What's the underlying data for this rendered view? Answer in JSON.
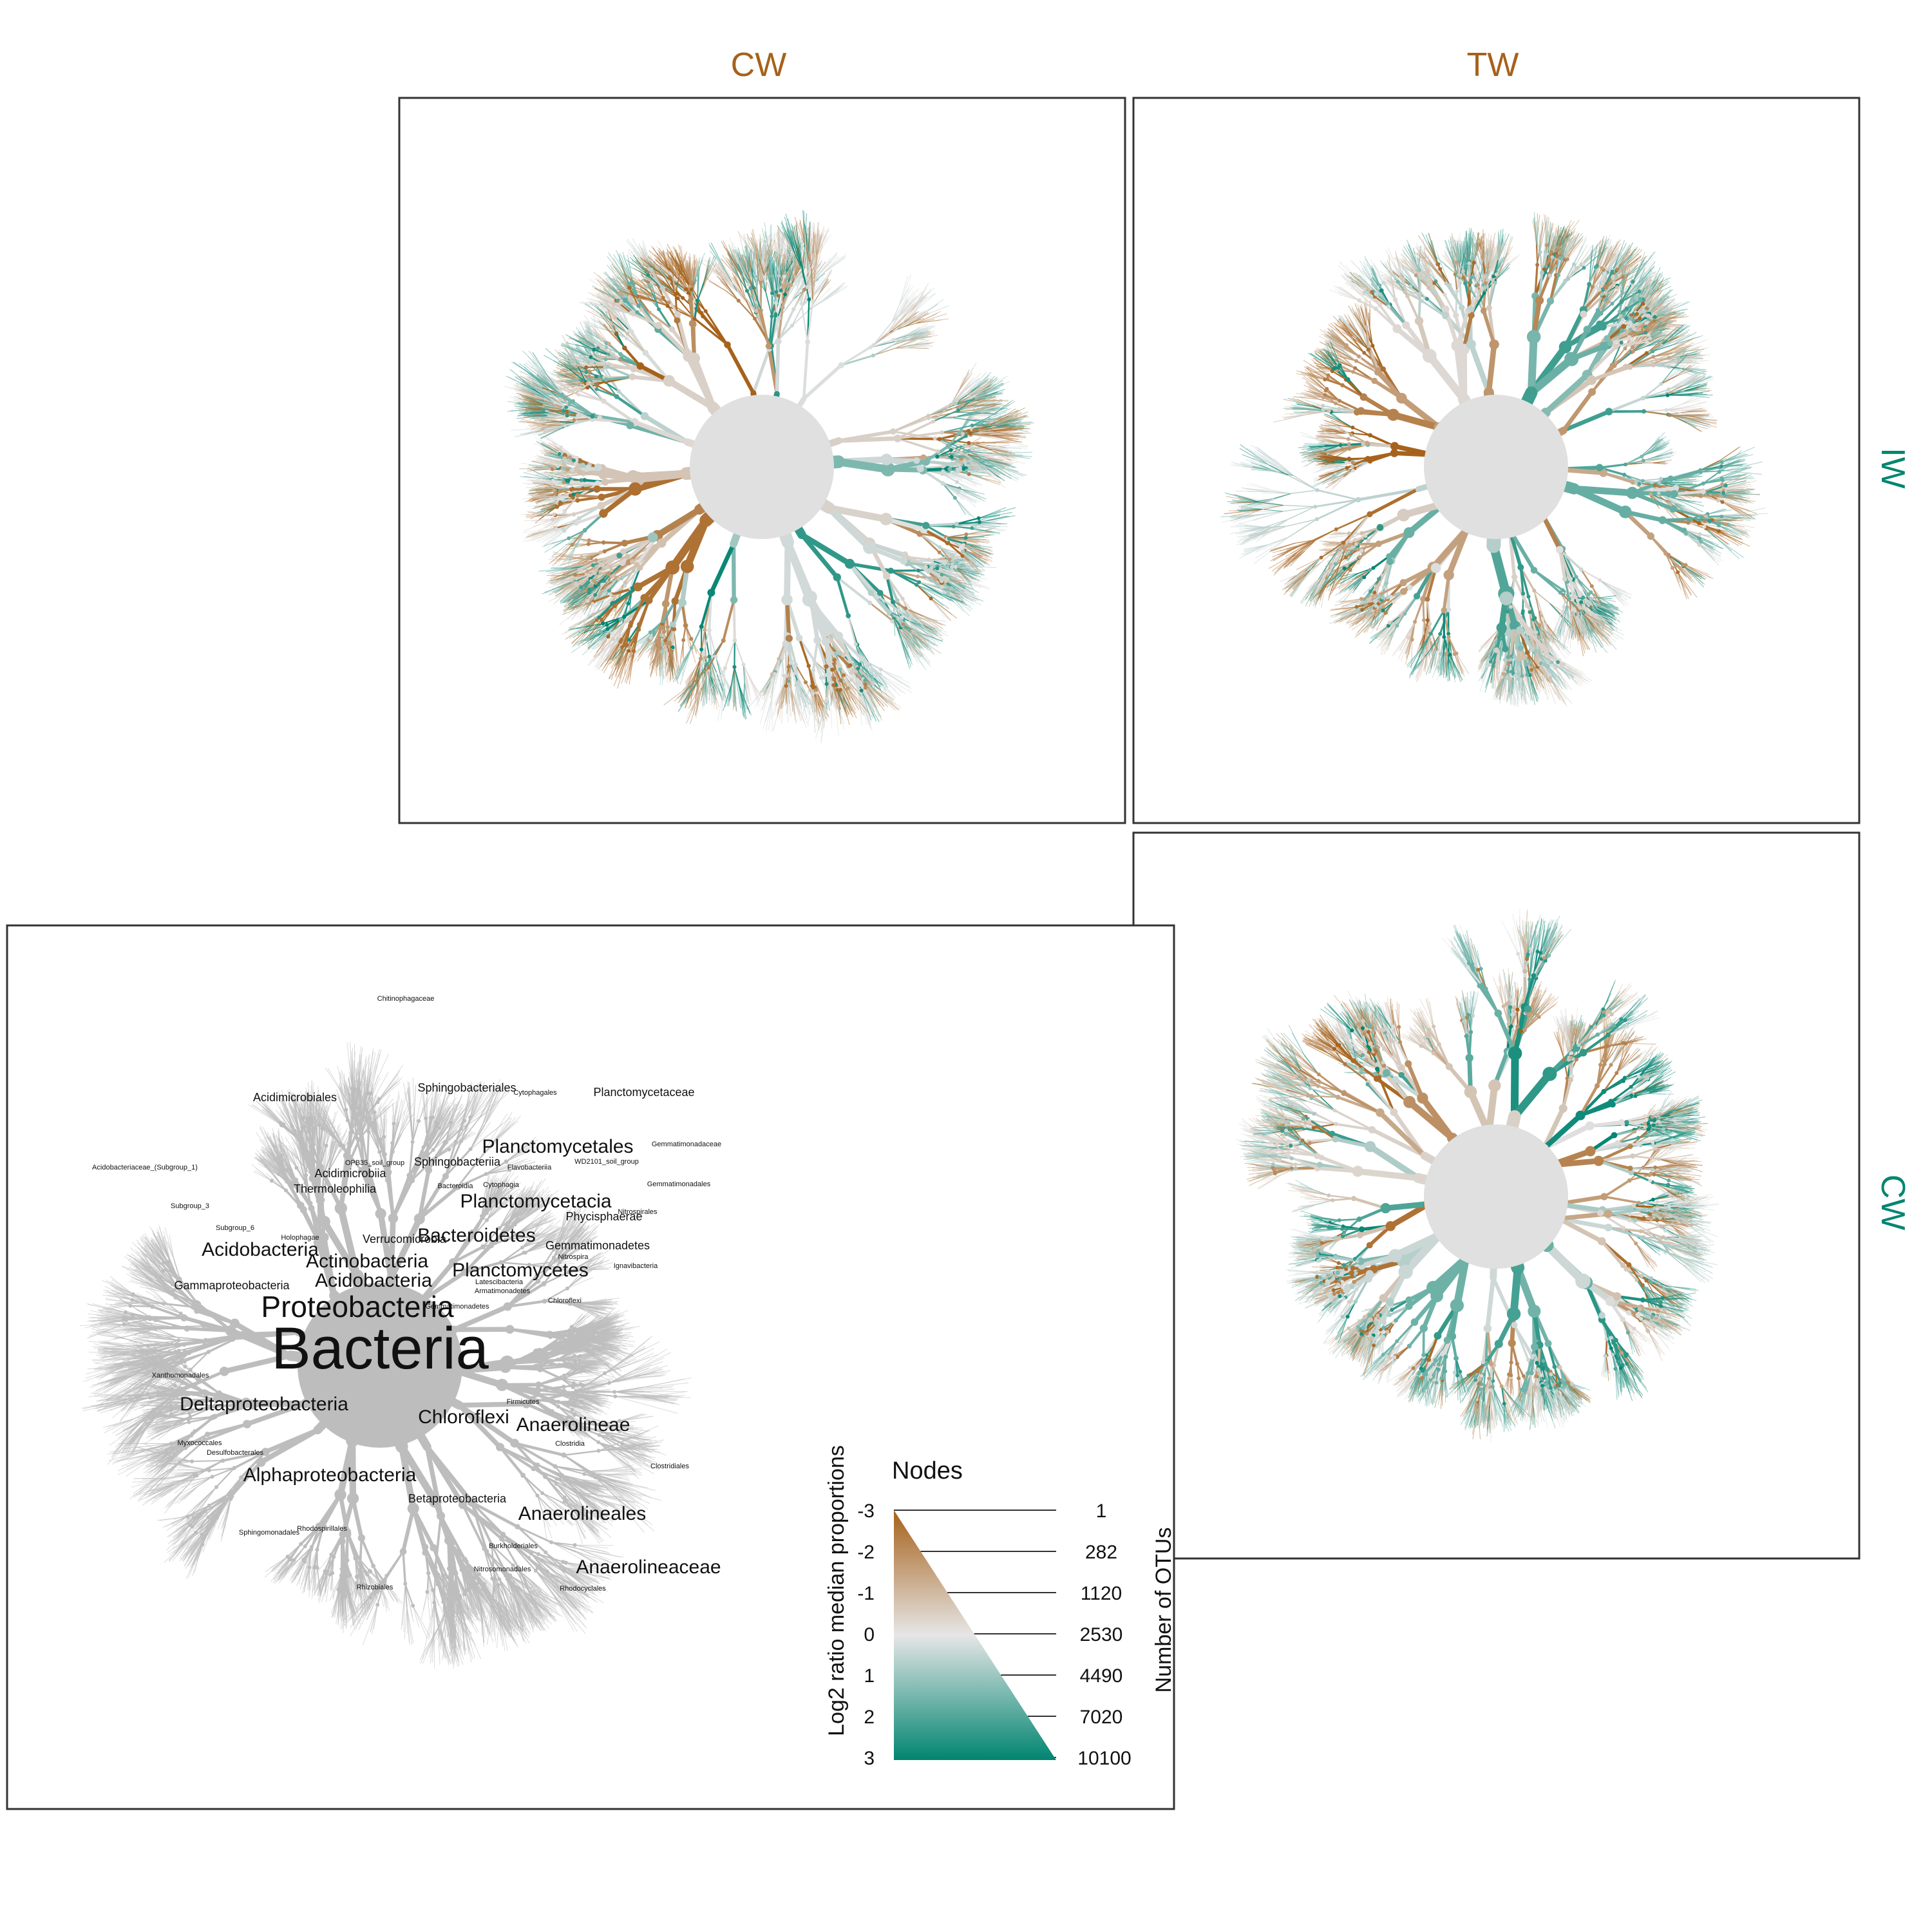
{
  "colors": {
    "brown": "#a6611a",
    "teal": "#018571",
    "neutral": "#e0e0e0",
    "gray_tree": "#bdbdbd",
    "label_brown": "#a6611a",
    "label_teal": "#018571"
  },
  "panels": {
    "column_labels": [
      "CW",
      "TW"
    ],
    "row_labels": [
      "IW",
      "CW"
    ]
  },
  "key_tree": {
    "labels": [
      {
        "text": "Bacteria",
        "size": "xl"
      },
      {
        "text": "Proteobacteria",
        "size": "l"
      },
      {
        "text": "Chloroflexi",
        "size": "m"
      },
      {
        "text": "Acidobacteria",
        "size": "m"
      },
      {
        "text": "Actinobacteria",
        "size": "m"
      },
      {
        "text": "Bacteroidetes",
        "size": "m"
      },
      {
        "text": "Planctomycetes",
        "size": "m"
      },
      {
        "text": "Acidobacteria",
        "size": "m"
      },
      {
        "text": "Deltaproteobacteria",
        "size": "m"
      },
      {
        "text": "Alphaproteobacteria",
        "size": "m"
      },
      {
        "text": "Betaproteobacteria",
        "size": "s"
      },
      {
        "text": "Gammaproteobacteria",
        "size": "s"
      },
      {
        "text": "Anaerolineae",
        "size": "m"
      },
      {
        "text": "Anaerolineales",
        "size": "m"
      },
      {
        "text": "Anaerolineaceae",
        "size": "m"
      },
      {
        "text": "Planctomycetacia",
        "size": "m"
      },
      {
        "text": "Planctomycetales",
        "size": "m"
      },
      {
        "text": "Planctomycetaceae",
        "size": "s"
      },
      {
        "text": "Sphingobacteriia",
        "size": "s"
      },
      {
        "text": "Sphingobacteriales",
        "size": "s"
      },
      {
        "text": "Verrucomicrobia",
        "size": "s"
      },
      {
        "text": "Gemmatimonadetes",
        "size": "s"
      },
      {
        "text": "Gemmatimonadetes",
        "size": "xs"
      },
      {
        "text": "Thermoleophilia",
        "size": "s"
      },
      {
        "text": "Acidimicrobiia",
        "size": "s"
      },
      {
        "text": "Acidimicrobiales",
        "size": "s"
      },
      {
        "text": "Phycisphaerae",
        "size": "s"
      },
      {
        "text": "Chitinophagaceae",
        "size": "xs"
      },
      {
        "text": "Gemmatimonadaceae",
        "size": "xs"
      },
      {
        "text": "Gemmatimonadales",
        "size": "xs"
      },
      {
        "text": "Xanthomonadales",
        "size": "xs"
      },
      {
        "text": "Myxococcales",
        "size": "xs"
      },
      {
        "text": "Rhizobiales",
        "size": "xs"
      },
      {
        "text": "Rhodospirillales",
        "size": "xs"
      },
      {
        "text": "Sphingomonadales",
        "size": "xs"
      },
      {
        "text": "Clostridia",
        "size": "xs"
      },
      {
        "text": "Clostridiales",
        "size": "xs"
      },
      {
        "text": "Firmicutes",
        "size": "xs"
      },
      {
        "text": "Subgroup_3",
        "size": "xs"
      },
      {
        "text": "Subgroup_6",
        "size": "xs"
      },
      {
        "text": "Holophagae",
        "size": "xs"
      },
      {
        "text": "OPB35_soil_group",
        "size": "xs"
      },
      {
        "text": "Cytophagia",
        "size": "xs"
      },
      {
        "text": "Cytophagales",
        "size": "xs"
      },
      {
        "text": "Chloroflexi",
        "size": "xs"
      },
      {
        "text": "Nitrospira",
        "size": "xs"
      },
      {
        "text": "Nitrospirales",
        "size": "xs"
      },
      {
        "text": "Burkholderiales",
        "size": "xs"
      },
      {
        "text": "Desulfobacterales",
        "size": "xs"
      },
      {
        "text": "Acidobacteriaceae_(Subgroup_1)",
        "size": "xs"
      },
      {
        "text": "WD2101_soil_group",
        "size": "xs"
      },
      {
        "text": "Flavobacteriia",
        "size": "xs"
      },
      {
        "text": "Bacteroidia",
        "size": "xs"
      },
      {
        "text": "Ignavibacteria",
        "size": "xs"
      },
      {
        "text": "Latescibacteria",
        "size": "xs"
      },
      {
        "text": "Armatimonadetes",
        "size": "xs"
      },
      {
        "text": "Nitrosomonadales",
        "size": "xs"
      },
      {
        "text": "Rhodocyclales",
        "size": "xs"
      }
    ]
  },
  "legend": {
    "nodes_title": "Nodes",
    "color_axis_title": "Log2 ratio median proportions",
    "size_axis_title": "Number of OTUs",
    "color_ticks": [
      "-3",
      "-2",
      "-1",
      "0",
      "1",
      "2",
      "3"
    ],
    "size_ticks": [
      "1",
      "282",
      "1120",
      "2530",
      "4490",
      "7020",
      "10100"
    ]
  }
}
